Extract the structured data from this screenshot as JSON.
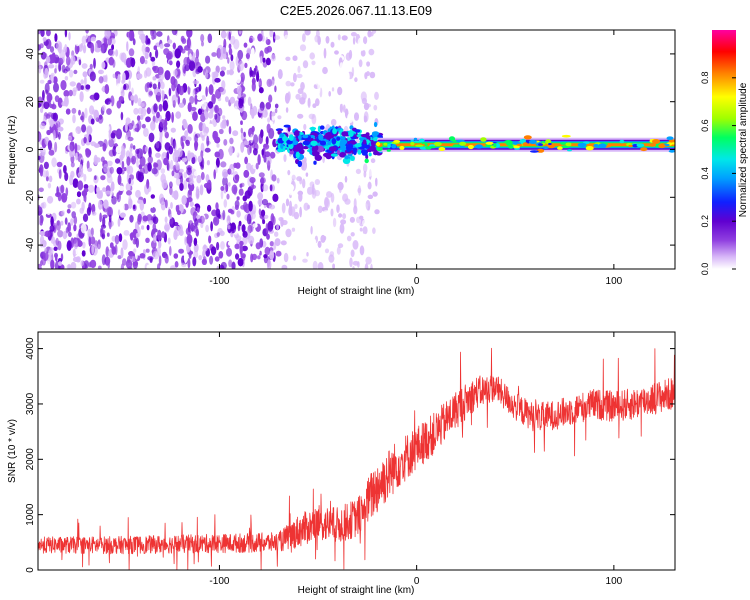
{
  "title": "C2E5.2026.067.11.13.E09",
  "chart_data": [
    {
      "type": "heatmap",
      "xlabel": "Height of straight line (km)",
      "ylabel": "Frequency (Hz)",
      "xlim": [
        -192,
        131
      ],
      "ylim": [
        -50,
        50
      ],
      "xticks": [
        -100,
        0,
        100
      ],
      "xtick_labels": [
        "-100",
        "0",
        "100"
      ],
      "yticks": [
        -40,
        -20,
        0,
        20,
        40
      ],
      "ytick_labels": [
        "-40",
        "-20",
        "0",
        "20",
        "40"
      ],
      "colorbar": {
        "label": "Normalized spectral amplitude",
        "range": [
          0,
          1
        ],
        "ticks": [
          "0.0",
          "0.2",
          "0.4",
          "0.6",
          "0.8"
        ],
        "tick_values": [
          0.0,
          0.2,
          0.4,
          0.6,
          0.8
        ],
        "colors": [
          "#ffffff",
          "#d8b8f8",
          "#9040e0",
          "#6000d0",
          "#1020ff",
          "#00a0ff",
          "#00e8e8",
          "#00ff60",
          "#a0ff00",
          "#ffff00",
          "#ff8000",
          "#ff0000",
          "#ff00a0"
        ]
      },
      "features": {
        "noise_region": [
          -192,
          -20
        ],
        "dense_noise_until": -70,
        "signal_band_frequency": 2,
        "signal_start": -70
      }
    },
    {
      "type": "line",
      "xlabel": "Height of straight line (km)",
      "ylabel": "SNR (10 * v/v)",
      "xlim": [
        -192,
        131
      ],
      "ylim": [
        0,
        4300
      ],
      "xticks": [
        -100,
        0,
        100
      ],
      "xtick_labels": [
        "-100",
        "0",
        "100"
      ],
      "yticks": [
        0,
        1000,
        2000,
        3000,
        4000
      ],
      "ytick_labels": [
        "0",
        "1000",
        "2000",
        "3000",
        "4000"
      ],
      "color": "#ee3333",
      "trend": {
        "x": [
          -192,
          -150,
          -100,
          -70,
          -60,
          -50,
          -40,
          -30,
          -20,
          -10,
          0,
          10,
          20,
          30,
          40,
          50,
          60,
          70,
          80,
          90,
          100,
          110,
          120,
          131
        ],
        "y": [
          450,
          450,
          480,
          500,
          700,
          850,
          800,
          950,
          1500,
          1900,
          2200,
          2500,
          2900,
          3200,
          3300,
          2950,
          2750,
          2800,
          2900,
          3000,
          2950,
          3000,
          3100,
          3200
        ]
      },
      "noise_amplitude": {
        "x": [
          -192,
          -70,
          -60,
          -30,
          -20,
          0,
          20,
          40,
          131
        ],
        "y": [
          150,
          180,
          300,
          350,
          500,
          400,
          350,
          250,
          300
        ]
      }
    }
  ]
}
